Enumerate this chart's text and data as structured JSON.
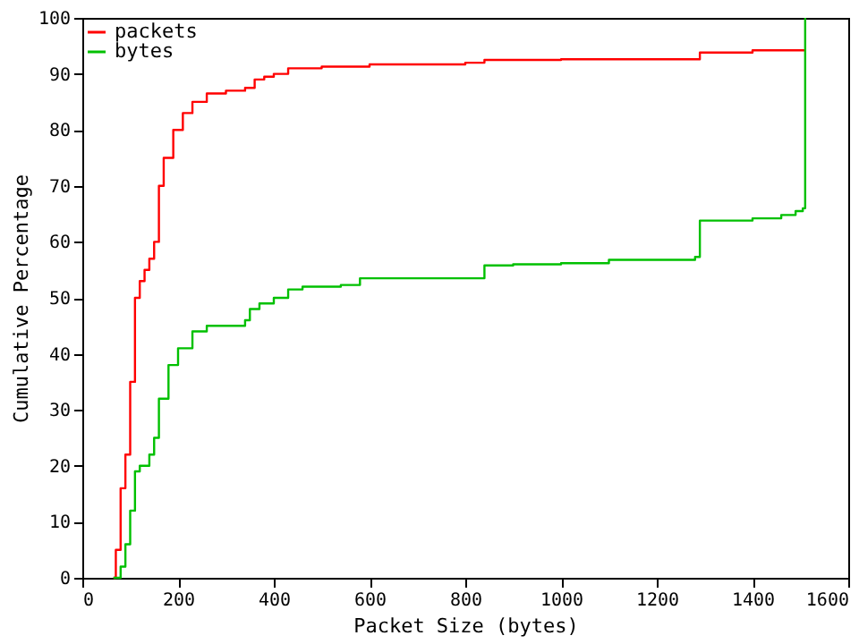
{
  "chart_data": {
    "type": "step",
    "xlabel": "Packet Size (bytes)",
    "ylabel": "Cumulative Percentage",
    "xlim": [
      0,
      1600
    ],
    "xticks": [
      0,
      200,
      400,
      600,
      800,
      1000,
      1200,
      1400,
      1600
    ],
    "ylim": [
      0,
      100
    ],
    "yticks": [
      0,
      10,
      20,
      30,
      40,
      50,
      60,
      70,
      80,
      90,
      100
    ],
    "grid": false,
    "legend": "top left",
    "marker": "none",
    "line_style": "solid",
    "series": [
      {
        "name": "packets",
        "color": "#ff0000",
        "x": [
          65,
          70,
          80,
          90,
          100,
          110,
          120,
          130,
          140,
          150,
          160,
          170,
          190,
          210,
          230,
          260,
          300,
          340,
          360,
          380,
          400,
          430,
          500,
          600,
          800,
          840,
          1000,
          1280,
          1290,
          1400,
          1510
        ],
        "values": [
          0,
          5,
          16,
          22,
          35,
          50,
          53,
          55,
          57,
          60,
          70,
          75,
          80,
          83,
          85,
          86.5,
          87,
          87.5,
          89,
          89.5,
          90,
          91,
          91.3,
          91.7,
          92,
          92.5,
          92.6,
          92.6,
          93.8,
          94.2,
          94.2
        ]
      },
      {
        "name": "bytes",
        "color": "#00c000",
        "x": [
          65,
          80,
          90,
          100,
          110,
          120,
          140,
          150,
          160,
          180,
          200,
          230,
          260,
          340,
          350,
          370,
          400,
          430,
          460,
          540,
          580,
          830,
          840,
          900,
          1000,
          1100,
          1280,
          1290,
          1400,
          1460,
          1490,
          1505,
          1510
        ],
        "values": [
          0,
          2,
          6,
          12,
          19,
          20,
          22,
          25,
          32,
          38,
          41,
          44,
          45,
          46,
          48,
          49,
          50,
          51.5,
          52,
          52.3,
          53.5,
          53.5,
          55.8,
          56,
          56.2,
          56.8,
          57.3,
          63.8,
          64.2,
          64.8,
          65.5,
          66,
          100
        ]
      }
    ]
  }
}
